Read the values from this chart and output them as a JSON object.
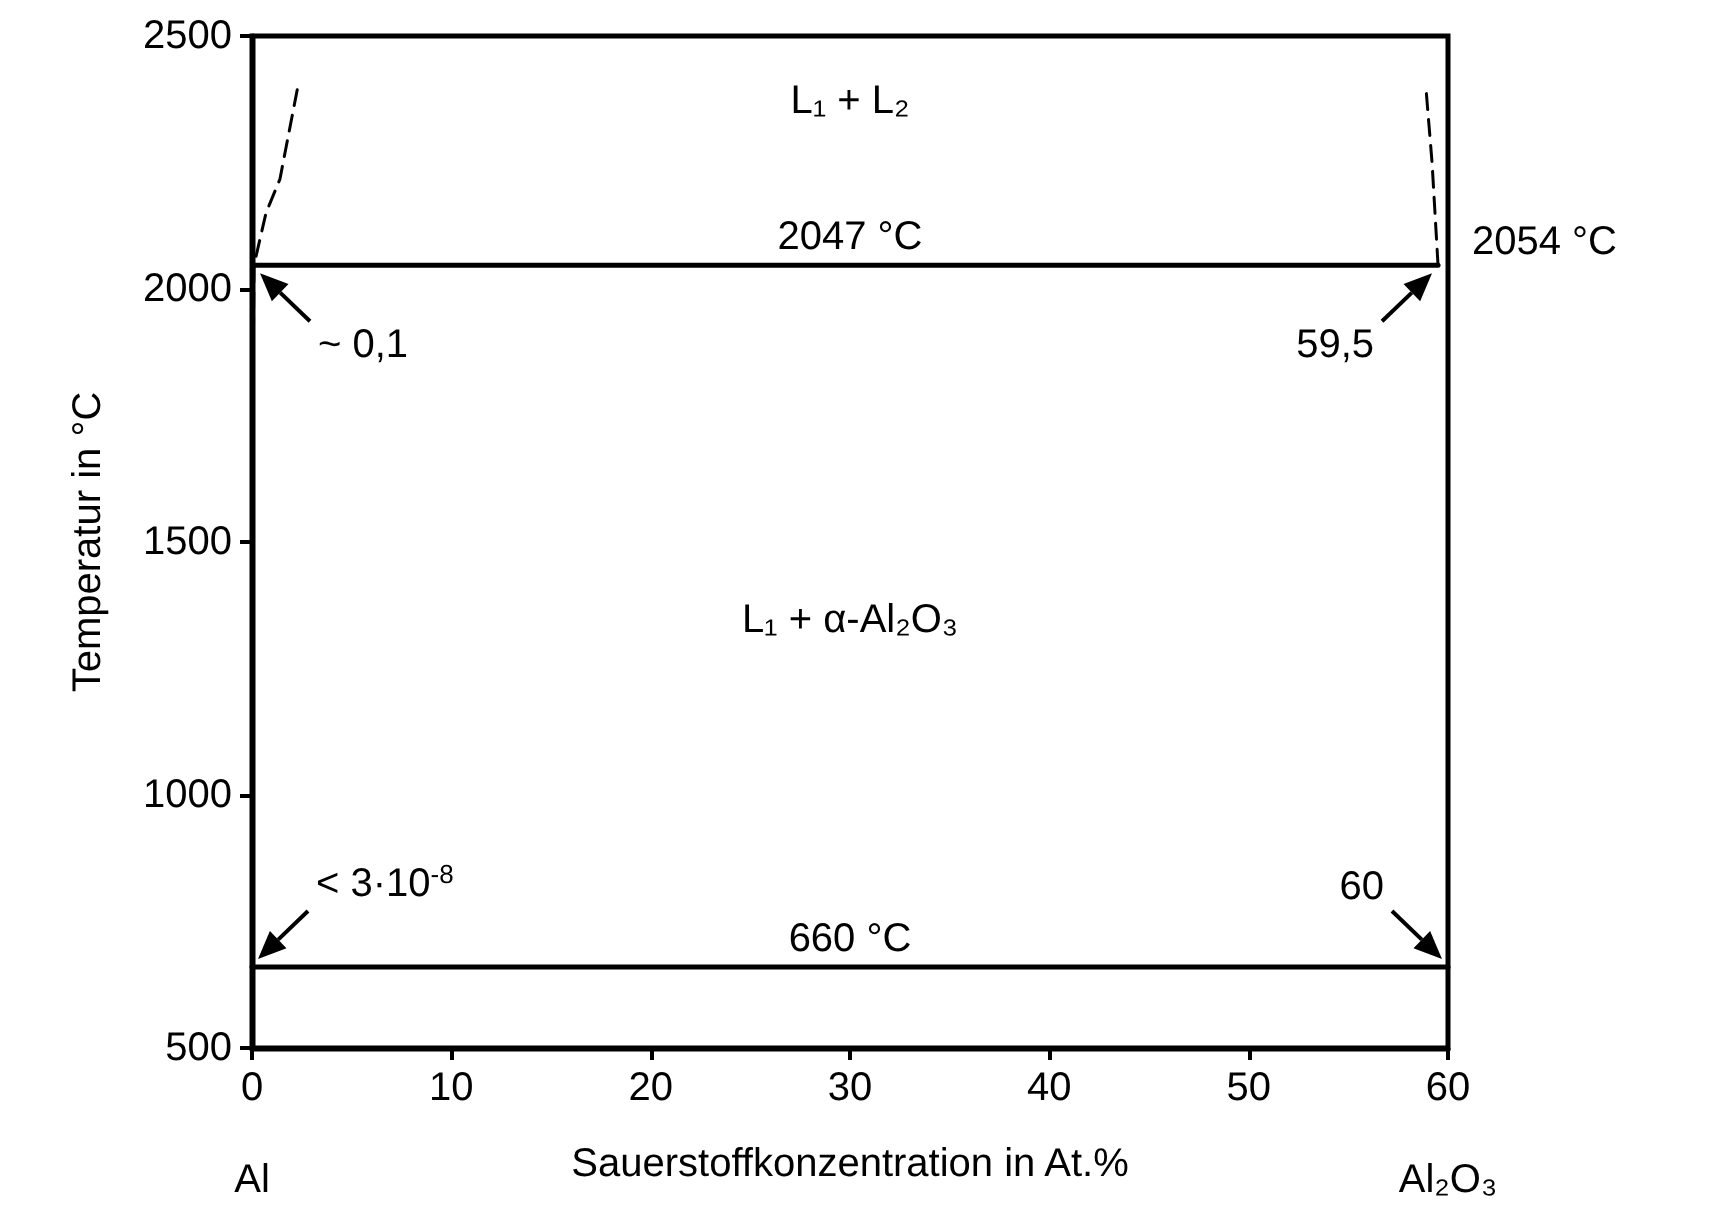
{
  "chart_data": {
    "type": "line",
    "xlabel": "Sauerstoffkonzentration in At.%",
    "ylabel": "Temperatur in °C",
    "xlim": [
      0,
      60
    ],
    "xticks": [
      0,
      10,
      20,
      30,
      40,
      50,
      60
    ],
    "ylim": [
      500,
      2500
    ],
    "yticks": [
      500,
      1000,
      1500,
      2000,
      2500
    ],
    "marker": "none",
    "series": [
      {
        "color": "#000000",
        "line_style": "solid",
        "x": [
          0,
          60
        ],
        "values": [
          660,
          660
        ]
      },
      {
        "color": "#000000",
        "line_style": "solid",
        "x": [
          0.1,
          59.5
        ],
        "values": [
          2047,
          2047
        ]
      },
      {
        "color": "#000000",
        "line_style": "dashed",
        "x": [
          0,
          0.05,
          0.1,
          0.7,
          1.4,
          2.3
        ],
        "values": [
          1500,
          1800,
          2047,
          2150,
          2217,
          2400
        ]
      },
      {
        "color": "#000000",
        "line_style": "dashed",
        "x": [
          59.5,
          59.2,
          58.9
        ],
        "values": [
          2047,
          2250,
          2394
        ]
      }
    ],
    "annotations": [
      "L₁ + L₂",
      "L₁ + α-Al₂O₃",
      {
        "text": "2047 °C",
        "x": 30,
        "y": 2047
      },
      {
        "text": "660 °C",
        "x": 30,
        "y": 660
      },
      {
        "text": "~ 0,1",
        "x": 0.1,
        "y": 2047
      },
      {
        "text": "59,5",
        "x": 59.5,
        "y": 2047
      },
      {
        "text": "2054 °C",
        "x": 60,
        "y": 2054
      },
      {
        "text": "< 3·10$^{-8}$",
        "x": 0,
        "y": 660
      },
      {
        "text": "60",
        "x": 60,
        "y": 660
      },
      "Al",
      "Al₂O₃"
    ]
  }
}
